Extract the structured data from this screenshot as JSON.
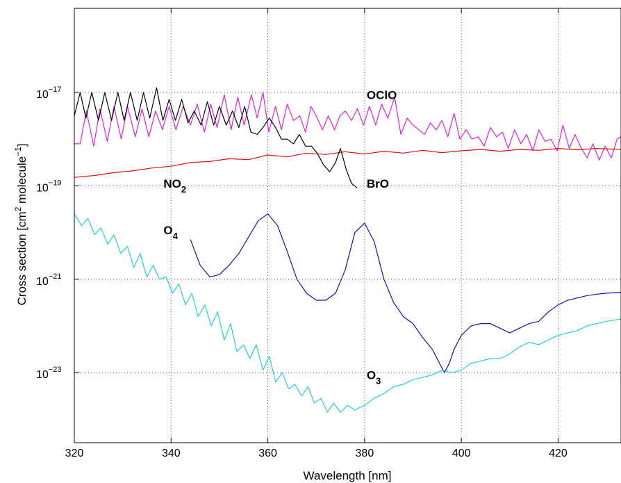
{
  "chart_data": {
    "type": "line",
    "title": "",
    "xlabel": "Wavelength [nm]",
    "ylabel_parts": [
      "Cross section [cm",
      "2",
      " molecule",
      "−1",
      "]"
    ],
    "xlim": [
      320,
      433
    ],
    "ylim_log10": [
      -24.5,
      -15.2
    ],
    "log_y": true,
    "grid": true,
    "x_ticks": [
      "320",
      "340",
      "360",
      "380",
      "400",
      "420"
    ],
    "x_tick_values": [
      320,
      340,
      360,
      380,
      400,
      420
    ],
    "y_tick_exponents": [
      "−17",
      "−19",
      "−21",
      "−23"
    ],
    "y_tick_values_log10": [
      -17,
      -19,
      -21,
      -23
    ],
    "y_tick_base": "10",
    "annotations": [
      {
        "base": "OClO",
        "sub": "",
        "x": 380,
        "y_log10": -17.05
      },
      {
        "base": "NO",
        "sub": "2",
        "x": 338,
        "y_log10": -18.95
      },
      {
        "base": "BrO",
        "sub": "",
        "x": 380,
        "y_log10": -18.95
      },
      {
        "base": "O",
        "sub": "4",
        "x": 338,
        "y_log10": -19.95
      },
      {
        "base": "O",
        "sub": "3",
        "x": 380,
        "y_log10": -23.05
      }
    ],
    "series": [
      {
        "name": "OClO",
        "color": "#e020e0",
        "x": [
          320,
          321.2,
          322.5,
          324,
          325.3,
          326.8,
          328.2,
          329.7,
          331,
          332.6,
          334,
          335.4,
          336.8,
          338.2,
          339.6,
          341,
          342.5,
          344,
          345.4,
          346.9,
          348.2,
          349.5,
          351,
          352.4,
          353.8,
          355.1,
          356.6,
          357.8,
          359,
          360.2,
          361.6,
          362.8,
          364,
          365.3,
          366.6,
          367.8,
          368.9,
          370,
          371.3,
          372.5,
          373.8,
          374.9,
          376,
          377.3,
          378.5,
          379.8,
          381,
          382.3,
          383.5,
          384.8,
          386.2,
          387.5,
          388.8,
          390,
          391.2,
          392.4,
          393.6,
          394.8,
          396,
          397.2,
          398.5,
          399.7,
          401,
          402.2,
          403.5,
          404.7,
          406,
          407.3,
          408.5,
          409.7,
          411,
          412.3,
          413.5,
          414.8,
          416,
          417.3,
          418.5,
          419.8,
          421,
          422.3,
          423.5,
          424.8,
          426,
          427.2,
          428.5,
          429.7,
          431,
          432.2,
          433
        ],
        "y_log10": [
          -18.1,
          -18.1,
          -17.4,
          -18.15,
          -17.35,
          -18.05,
          -17.3,
          -18.0,
          -17.3,
          -17.95,
          -17.35,
          -17.95,
          -17.4,
          -17.8,
          -17.3,
          -17.8,
          -17.3,
          -17.7,
          -17.25,
          -17.85,
          -17.25,
          -17.75,
          -17.05,
          -17.8,
          -17.1,
          -17.7,
          -17.05,
          -17.55,
          -17.0,
          -17.85,
          -17.3,
          -17.8,
          -17.25,
          -17.6,
          -17.5,
          -17.85,
          -17.3,
          -17.5,
          -17.8,
          -17.5,
          -17.8,
          -17.5,
          -17.4,
          -17.6,
          -17.35,
          -17.7,
          -17.3,
          -17.7,
          -17.25,
          -17.55,
          -17.1,
          -17.9,
          -17.55,
          -17.7,
          -17.8,
          -17.9,
          -17.65,
          -17.8,
          -17.6,
          -17.95,
          -17.45,
          -18.0,
          -17.8,
          -18.0,
          -17.95,
          -18.15,
          -17.75,
          -17.95,
          -17.85,
          -18.2,
          -17.8,
          -18.1,
          -17.9,
          -18.25,
          -17.8,
          -18.05,
          -18.0,
          -18.25,
          -17.7,
          -18.2,
          -17.9,
          -18.2,
          -18.4,
          -18.1,
          -18.45,
          -18.15,
          -18.4,
          -18.0,
          -17.95
        ]
      },
      {
        "name": "NO2",
        "color": "#e01010",
        "x": [
          320,
          324,
          328,
          332,
          336,
          340,
          344,
          348,
          352,
          356,
          360,
          364,
          368,
          372,
          376,
          380,
          384,
          388,
          392,
          396,
          400,
          404,
          408,
          412,
          416,
          420,
          424,
          428,
          433
        ],
        "y_log10": [
          -18.82,
          -18.78,
          -18.72,
          -18.68,
          -18.62,
          -18.58,
          -18.5,
          -18.48,
          -18.42,
          -18.44,
          -18.34,
          -18.38,
          -18.3,
          -18.33,
          -18.27,
          -18.32,
          -18.26,
          -18.3,
          -18.24,
          -18.29,
          -18.25,
          -18.22,
          -18.26,
          -18.22,
          -18.24,
          -18.2,
          -18.23,
          -18.2,
          -18.22
        ]
      },
      {
        "name": "BrO",
        "color": "#000000",
        "x": [
          320,
          321.2,
          322.4,
          323.6,
          325,
          326.3,
          327.7,
          329,
          330.3,
          331.6,
          333,
          334.3,
          335.6,
          337,
          338.3,
          339.6,
          340.9,
          342.2,
          343.5,
          344.8,
          346.2,
          347.5,
          348.8,
          350,
          351.4,
          352.7,
          354,
          355.2,
          356.5,
          357.8,
          359,
          360.3,
          361.6,
          362.8,
          364,
          365.3,
          366.5,
          367.8,
          369,
          370.2,
          371.5,
          372.8,
          374,
          375,
          376.2,
          377.3,
          378.5
        ],
        "y_log10": [
          -17.5,
          -17.0,
          -17.55,
          -17.0,
          -17.6,
          -17.0,
          -17.6,
          -17.0,
          -17.6,
          -17.0,
          -17.6,
          -17.0,
          -17.55,
          -16.9,
          -17.6,
          -17.15,
          -17.6,
          -17.15,
          -17.65,
          -17.4,
          -17.7,
          -17.2,
          -17.7,
          -17.3,
          -17.7,
          -17.4,
          -17.75,
          -17.3,
          -17.85,
          -17.9,
          -17.75,
          -17.55,
          -17.75,
          -18.0,
          -18.0,
          -18.1,
          -17.9,
          -18.15,
          -18.15,
          -18.3,
          -18.55,
          -18.7,
          -18.5,
          -18.2,
          -18.65,
          -18.95,
          -19.05
        ]
      },
      {
        "name": "O4",
        "color": "#1010c0",
        "x": [
          344,
          346,
          348,
          350,
          352,
          354,
          356,
          358,
          360,
          362,
          364,
          366,
          368,
          370,
          372,
          374,
          376,
          378,
          380,
          382,
          384,
          386,
          388,
          390,
          392,
          394,
          395.5,
          396.5,
          397.5,
          398.5,
          400,
          402,
          404,
          406,
          408,
          410,
          412,
          414,
          416,
          418,
          420,
          422,
          424,
          426,
          428,
          430,
          433
        ],
        "y_log10": [
          -20.15,
          -20.7,
          -20.95,
          -20.9,
          -20.7,
          -20.45,
          -20.1,
          -19.75,
          -19.6,
          -19.85,
          -20.4,
          -21.0,
          -21.3,
          -21.45,
          -21.45,
          -21.3,
          -20.8,
          -20.0,
          -19.8,
          -20.2,
          -21.0,
          -21.5,
          -21.8,
          -21.95,
          -22.25,
          -22.5,
          -22.8,
          -23.0,
          -22.8,
          -22.5,
          -22.2,
          -22.0,
          -21.95,
          -21.95,
          -22.05,
          -22.15,
          -22.05,
          -21.95,
          -21.9,
          -21.7,
          -21.55,
          -21.45,
          -21.4,
          -21.35,
          -21.32,
          -21.3,
          -21.28
        ]
      },
      {
        "name": "O3",
        "color": "#20d0e0",
        "x": [
          320,
          321.5,
          322.8,
          324.2,
          325.5,
          326.9,
          328.2,
          329.6,
          331,
          332.3,
          333.6,
          335,
          336.3,
          337.6,
          339,
          340.3,
          341.6,
          343,
          344.3,
          345.6,
          347,
          348.3,
          349.6,
          351,
          352.3,
          353.6,
          355,
          356.3,
          357.6,
          359,
          360.3,
          361.6,
          363,
          364.3,
          365.6,
          367,
          368.3,
          369.6,
          371,
          372.3,
          373.6,
          375,
          376.5,
          378,
          380,
          382,
          384,
          386,
          388,
          390,
          392,
          394,
          396,
          398,
          400,
          402,
          404,
          406,
          408,
          410,
          412,
          414,
          416,
          418,
          420,
          422,
          424,
          426,
          428,
          430,
          433
        ],
        "y_log10": [
          -19.6,
          -19.85,
          -19.7,
          -20.05,
          -19.9,
          -20.25,
          -20.05,
          -20.45,
          -20.3,
          -20.75,
          -20.45,
          -20.95,
          -20.7,
          -21.0,
          -20.95,
          -21.3,
          -21.1,
          -21.55,
          -21.3,
          -21.8,
          -21.55,
          -22.0,
          -21.7,
          -22.3,
          -21.95,
          -22.55,
          -22.4,
          -22.7,
          -22.4,
          -22.95,
          -22.65,
          -23.2,
          -23.0,
          -23.35,
          -23.25,
          -23.5,
          -23.3,
          -23.65,
          -23.55,
          -23.85,
          -23.65,
          -23.85,
          -23.7,
          -23.8,
          -23.7,
          -23.55,
          -23.45,
          -23.3,
          -23.25,
          -23.15,
          -23.1,
          -23.05,
          -22.95,
          -23.0,
          -22.95,
          -22.8,
          -22.75,
          -22.7,
          -22.7,
          -22.6,
          -22.45,
          -22.35,
          -22.4,
          -22.3,
          -22.2,
          -22.15,
          -22.1,
          -22.0,
          -21.95,
          -21.9,
          -21.85
        ]
      }
    ]
  }
}
